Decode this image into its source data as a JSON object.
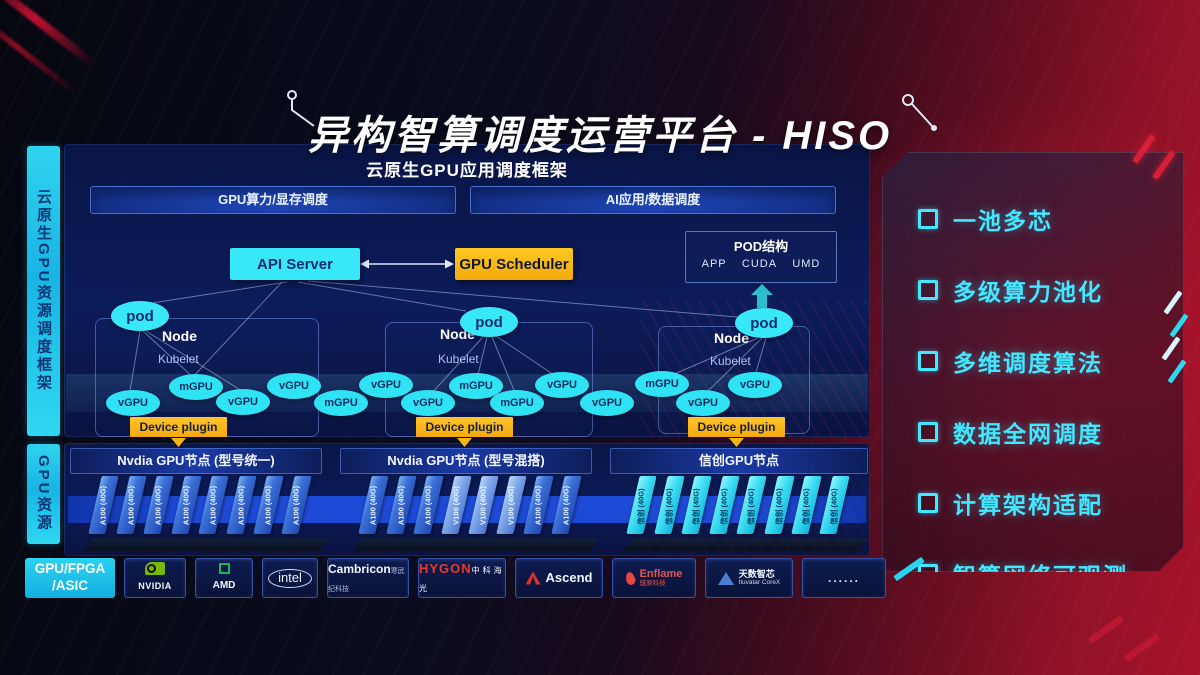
{
  "title": "异构智算调度运营平台 - HISO",
  "sidebar": {
    "scheduling_framework": "云原生GPU资源调度框架",
    "gpu_resources": "GPU资源",
    "hardware_line1": "GPU/FPGA",
    "hardware_line2": "/ASIC"
  },
  "app_framework": {
    "title": "云原生GPU应用调度框架",
    "left_bar": "GPU算力/显存调度",
    "right_bar": "AI应用/数据调度"
  },
  "control": {
    "api_server": "API Server",
    "gpu_scheduler": "GPU Scheduler",
    "pod_structure": {
      "title": "POD结构",
      "items": [
        "APP",
        "CUDA",
        "UMD"
      ]
    }
  },
  "k8s_nodes": [
    {
      "pod": "pod",
      "node": "Node",
      "kubelet": "Kubelet",
      "device_plugin": "Device plugin"
    },
    {
      "pod": "pod",
      "node": "Node",
      "kubelet": "Kubelet",
      "device_plugin": "Device plugin"
    },
    {
      "pod": "pod",
      "node": "Node",
      "kubelet": "Kubelet",
      "device_plugin": "Device plugin"
    }
  ],
  "gpu_ellipses": [
    "vGPU",
    "mGPU",
    "vGPU",
    "vGPU",
    "mGPU",
    "vGPU",
    "vGPU",
    "mGPU",
    "mGPU",
    "vGPU",
    "vGPU",
    "mGPU",
    "vGPU",
    "vGPU"
  ],
  "gpu_sections": [
    {
      "header": "Nvdia GPU节点 (型号统一)",
      "cards": [
        {
          "label": "A100 (40G)",
          "variant": "a100"
        },
        {
          "label": "A100 (40G)",
          "variant": "a100"
        },
        {
          "label": "A100 (40G)",
          "variant": "a100"
        },
        {
          "label": "A100 (40G)",
          "variant": "a100"
        },
        {
          "label": "A100 (40G)",
          "variant": "a100"
        },
        {
          "label": "A100 (40G)",
          "variant": "a100"
        },
        {
          "label": "A100 (40G)",
          "variant": "a100"
        },
        {
          "label": "A100 (40G)",
          "variant": "a100"
        }
      ]
    },
    {
      "header": "Nvdia GPU节点 (型号混搭)",
      "cards": [
        {
          "label": "A100 (40G)",
          "variant": "a100"
        },
        {
          "label": "A100 (40G)",
          "variant": "a100"
        },
        {
          "label": "A100 (40G)",
          "variant": "a100"
        },
        {
          "label": "V100 (40G)",
          "variant": "v100"
        },
        {
          "label": "V100 (40G)",
          "variant": "v100"
        },
        {
          "label": "V100 (40G)",
          "variant": "v100"
        },
        {
          "label": "A100 (40G)",
          "variant": "a100"
        },
        {
          "label": "A100 (40G)",
          "variant": "a100"
        }
      ]
    },
    {
      "header": "信创GPU节点",
      "cards": [
        {
          "label": "信创 (40G)",
          "variant": "xinchuang"
        },
        {
          "label": "信创 (40G)",
          "variant": "xinchuang"
        },
        {
          "label": "信创 (40G)",
          "variant": "xinchuang"
        },
        {
          "label": "信创 (40G)",
          "variant": "xinchuang"
        },
        {
          "label": "信创 (40G)",
          "variant": "xinchuang"
        },
        {
          "label": "信创 (40G)",
          "variant": "xinchuang"
        },
        {
          "label": "信创 (40G)",
          "variant": "xinchuang"
        },
        {
          "label": "信创 (40G)",
          "variant": "xinchuang"
        }
      ]
    }
  ],
  "vendors": [
    {
      "id": "nvidia",
      "brand": "NVIDIA"
    },
    {
      "id": "amd",
      "brand": "AMD"
    },
    {
      "id": "intel",
      "brand": "intel"
    },
    {
      "id": "cambricon",
      "brand": "Cambricon",
      "sub": "寒武纪科技"
    },
    {
      "id": "hygon",
      "brand": "HYGON",
      "sub": "中科海光"
    },
    {
      "id": "ascend",
      "brand": "Ascend"
    },
    {
      "id": "enflame",
      "brand": "Enflame",
      "sub": "燧原科技"
    },
    {
      "id": "iluvatar",
      "brand": "天数智芯",
      "sub": "Iluvatar CoreX"
    },
    {
      "id": "more",
      "brand": "......"
    }
  ],
  "features": [
    "一池多芯",
    "多级算力池化",
    "多维调度算法",
    "数据全网调度",
    "计算架构适配",
    "智算网络可观测"
  ],
  "colors": {
    "cyan": "#38e8f8",
    "yellow": "#f6b513",
    "panel_blue": "#0c1c5a",
    "accent_red": "#c01030"
  }
}
